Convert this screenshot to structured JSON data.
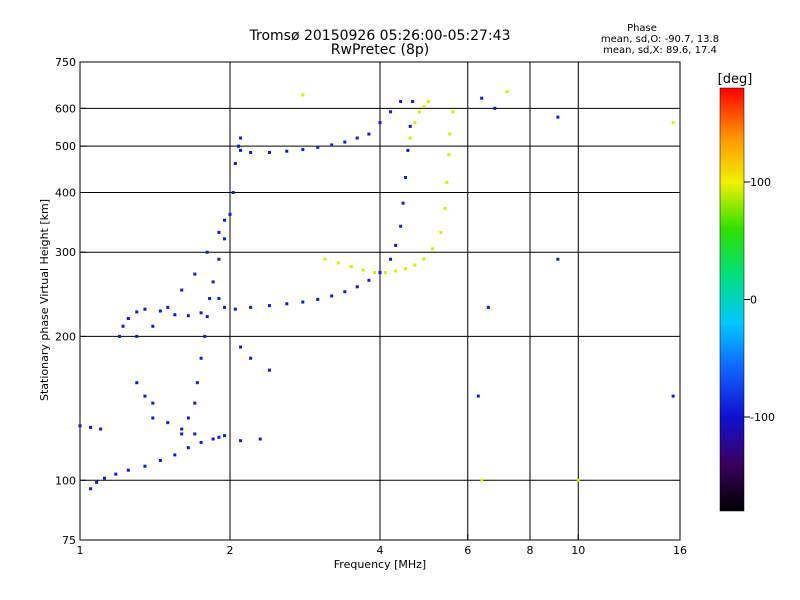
{
  "header": {
    "title": "Tromsø 20150926 05:26:00-05:27:43",
    "subtitle": "RwPretec (8p)"
  },
  "phase_box": {
    "heading": "Phase",
    "line_o": "mean, sd,O: -90.7, 13.8",
    "line_x": "mean, sd,X:  89.6, 17.4"
  },
  "colorbar": {
    "label": "[deg]",
    "ticks": [
      {
        "value": 100,
        "label": "100"
      },
      {
        "value": 0,
        "label": "0"
      },
      {
        "value": -100,
        "label": "-100"
      }
    ],
    "range": [
      -180,
      180
    ],
    "colors": [
      "#000000",
      "#3a0060",
      "#1010d0",
      "#1060ff",
      "#00c8ff",
      "#00e080",
      "#30e000",
      "#f0f000",
      "#ff9000",
      "#ff0000"
    ]
  },
  "chart_data": {
    "type": "scatter",
    "title": "Tromsø 20150926 05:26:00-05:27:43",
    "subtitle": "RwPretec (8p)",
    "xlabel": "Frequency [MHz]",
    "ylabel": "Stationary phase Virtual Height [km]",
    "x_scale": "log",
    "y_scale": "log",
    "xlim": [
      1,
      16
    ],
    "ylim": [
      75,
      750
    ],
    "x_ticks": [
      {
        "value": 1,
        "label": "1"
      },
      {
        "value": 2,
        "label": "2"
      },
      {
        "value": 4,
        "label": "4"
      },
      {
        "value": 6,
        "label": "6"
      },
      {
        "value": 8,
        "label": "8"
      },
      {
        "value": 10,
        "label": "10"
      },
      {
        "value": 16,
        "label": "16"
      }
    ],
    "y_ticks": [
      {
        "value": 75,
        "label": "75"
      },
      {
        "value": 100,
        "label": "100"
      },
      {
        "value": 200,
        "label": "200"
      },
      {
        "value": 300,
        "label": "300"
      },
      {
        "value": 400,
        "label": "400"
      },
      {
        "value": 500,
        "label": "500"
      },
      {
        "value": 600,
        "label": "600"
      },
      {
        "value": 750,
        "label": "750"
      }
    ],
    "x_gridlines": [
      2,
      4,
      6,
      8,
      10
    ],
    "y_gridlines": [
      100,
      200,
      300,
      400,
      500,
      600
    ],
    "grid": true,
    "color_scale": "phase [deg]",
    "series": [
      {
        "mode": "O",
        "phase_deg": -95,
        "points": [
          [
            1.05,
            96
          ],
          [
            1.08,
            99
          ],
          [
            1.12,
            101
          ],
          [
            1.18,
            103
          ],
          [
            1.25,
            105
          ],
          [
            1.35,
            107
          ],
          [
            1.45,
            110
          ],
          [
            1.55,
            113
          ],
          [
            1.65,
            117
          ],
          [
            1.75,
            120
          ],
          [
            1.85,
            122
          ],
          [
            1.95,
            124
          ],
          [
            1.0,
            130
          ],
          [
            1.05,
            129
          ],
          [
            1.1,
            128
          ],
          [
            1.2,
            200
          ],
          [
            1.22,
            210
          ],
          [
            1.25,
            218
          ],
          [
            1.3,
            225
          ],
          [
            1.35,
            228
          ],
          [
            1.45,
            226
          ],
          [
            1.55,
            222
          ],
          [
            1.65,
            221
          ],
          [
            1.75,
            224
          ],
          [
            1.6,
            125
          ],
          [
            1.65,
            135
          ],
          [
            1.7,
            145
          ],
          [
            1.72,
            160
          ],
          [
            1.75,
            180
          ],
          [
            1.78,
            200
          ],
          [
            1.8,
            220
          ],
          [
            1.82,
            240
          ],
          [
            1.85,
            260
          ],
          [
            1.9,
            290
          ],
          [
            1.95,
            320
          ],
          [
            2.0,
            360
          ],
          [
            2.03,
            400
          ],
          [
            2.05,
            460
          ],
          [
            2.08,
            500
          ],
          [
            2.1,
            520
          ],
          [
            1.3,
            200
          ],
          [
            1.4,
            210
          ],
          [
            1.5,
            230
          ],
          [
            1.6,
            250
          ],
          [
            1.7,
            270
          ],
          [
            1.8,
            300
          ],
          [
            1.9,
            330
          ],
          [
            1.95,
            350
          ],
          [
            1.9,
            240
          ],
          [
            1.95,
            230
          ],
          [
            2.05,
            228
          ],
          [
            2.2,
            230
          ],
          [
            2.4,
            232
          ],
          [
            2.6,
            234
          ],
          [
            2.8,
            236
          ],
          [
            3.0,
            239
          ],
          [
            3.2,
            243
          ],
          [
            3.4,
            248
          ],
          [
            3.6,
            254
          ],
          [
            3.8,
            262
          ],
          [
            4.0,
            272
          ],
          [
            4.2,
            290
          ],
          [
            4.3,
            310
          ],
          [
            4.4,
            340
          ],
          [
            4.45,
            380
          ],
          [
            4.5,
            430
          ],
          [
            4.55,
            490
          ],
          [
            4.6,
            550
          ],
          [
            4.65,
            620
          ],
          [
            2.1,
            490
          ],
          [
            2.2,
            485
          ],
          [
            2.4,
            485
          ],
          [
            2.6,
            488
          ],
          [
            2.8,
            492
          ],
          [
            3.0,
            497
          ],
          [
            3.2,
            503
          ],
          [
            3.4,
            510
          ],
          [
            3.6,
            520
          ],
          [
            3.8,
            530
          ],
          [
            4.0,
            560
          ],
          [
            4.2,
            590
          ],
          [
            4.4,
            620
          ],
          [
            1.4,
            135
          ],
          [
            1.5,
            132
          ],
          [
            1.6,
            128
          ],
          [
            1.7,
            125
          ],
          [
            1.9,
            123
          ],
          [
            2.1,
            121
          ],
          [
            2.3,
            122
          ],
          [
            1.3,
            160
          ],
          [
            1.35,
            150
          ],
          [
            1.4,
            145
          ],
          [
            2.2,
            180
          ],
          [
            2.4,
            170
          ],
          [
            2.1,
            190
          ],
          [
            6.4,
            630
          ],
          [
            6.8,
            600
          ],
          [
            9.1,
            575
          ],
          [
            6.6,
            230
          ],
          [
            9.1,
            290
          ],
          [
            6.3,
            150
          ],
          [
            15.5,
            150
          ]
        ]
      },
      {
        "mode": "X",
        "phase_deg": 95,
        "points": [
          [
            3.1,
            290
          ],
          [
            3.3,
            285
          ],
          [
            3.5,
            280
          ],
          [
            3.7,
            275
          ],
          [
            3.9,
            272
          ],
          [
            4.1,
            272
          ],
          [
            4.3,
            274
          ],
          [
            4.5,
            277
          ],
          [
            4.7,
            282
          ],
          [
            4.9,
            290
          ],
          [
            5.1,
            305
          ],
          [
            5.3,
            330
          ],
          [
            5.4,
            370
          ],
          [
            5.45,
            420
          ],
          [
            5.5,
            480
          ],
          [
            5.52,
            530
          ],
          [
            4.6,
            520
          ],
          [
            4.7,
            560
          ],
          [
            4.8,
            590
          ],
          [
            4.9,
            605
          ],
          [
            5.0,
            620
          ],
          [
            2.8,
            640
          ],
          [
            5.6,
            590
          ],
          [
            7.2,
            650
          ],
          [
            10.0,
            100
          ],
          [
            15.5,
            560
          ],
          [
            6.4,
            100
          ]
        ]
      }
    ]
  }
}
